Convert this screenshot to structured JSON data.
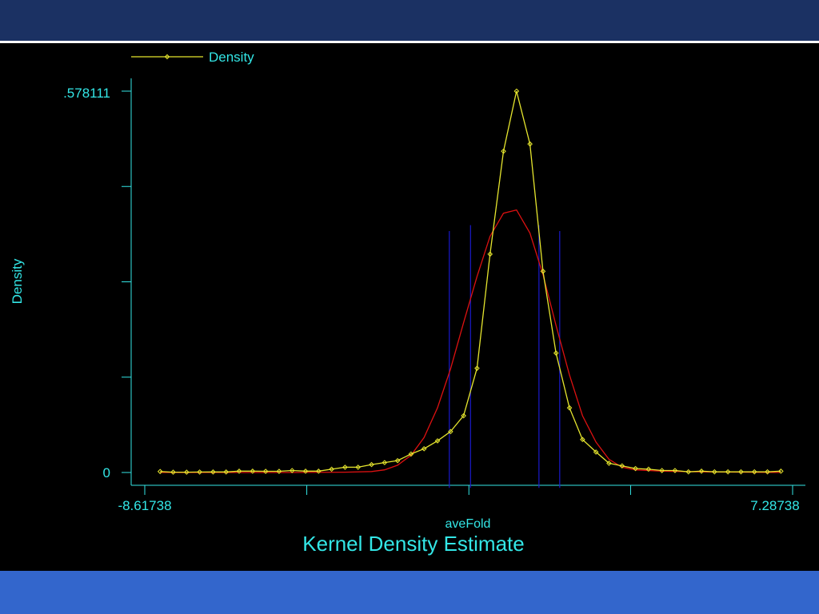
{
  "chart_data": {
    "type": "line",
    "title": "Kernel Density Estimate",
    "xlabel": "aveFold",
    "ylabel": "Density",
    "xlim": [
      -8.61738,
      7.28738
    ],
    "ylim": [
      0,
      0.578111
    ],
    "x_tick_labels": [
      "-8.61738",
      "7.28738"
    ],
    "y_tick_labels": [
      ".578111",
      "0"
    ],
    "legend": {
      "entries": [
        "Density"
      ],
      "placement": "top-left"
    },
    "colors": {
      "kde": "#e6e62e",
      "normal": "#dd1111",
      "ref_lines": "#1a1acc",
      "axis": "#33e6e6"
    },
    "series": [
      {
        "name": "Density",
        "x": [
          -8.24,
          -7.92,
          -7.59,
          -7.27,
          -6.94,
          -6.62,
          -6.3,
          -5.97,
          -5.65,
          -5.32,
          -5.0,
          -4.67,
          -4.35,
          -4.03,
          -3.7,
          -3.38,
          -3.05,
          -2.73,
          -2.41,
          -2.08,
          -1.76,
          -1.43,
          -1.11,
          -0.79,
          -0.46,
          -0.14,
          0.19,
          0.51,
          0.84,
          1.16,
          1.48,
          1.81,
          2.13,
          2.46,
          2.78,
          3.1,
          3.43,
          3.75,
          4.08,
          4.4,
          4.73,
          5.05,
          5.37,
          5.7,
          6.02,
          6.35,
          6.67,
          7.0
        ],
        "y": [
          0.0015,
          0.0005,
          0.0005,
          0.0007,
          0.0008,
          0.0008,
          0.002,
          0.002,
          0.0018,
          0.0018,
          0.003,
          0.002,
          0.002,
          0.005,
          0.008,
          0.008,
          0.012,
          0.015,
          0.018,
          0.028,
          0.036,
          0.048,
          0.062,
          0.086,
          0.158,
          0.331,
          0.487,
          0.5781,
          0.498,
          0.305,
          0.181,
          0.098,
          0.05,
          0.031,
          0.014,
          0.01,
          0.006,
          0.005,
          0.003,
          0.003,
          0.001,
          0.002,
          0.001,
          0.001,
          0.001,
          0.001,
          0.001,
          0.002
        ]
      },
      {
        "x": [
          -8.24,
          -5.0,
          -3.7,
          -3.05,
          -2.73,
          -2.41,
          -2.08,
          -1.76,
          -1.43,
          -1.11,
          -0.79,
          -0.46,
          -0.14,
          0.19,
          0.51,
          0.84,
          1.16,
          1.48,
          1.81,
          2.13,
          2.46,
          2.78,
          3.1,
          3.43,
          4.08,
          5.05,
          6.02,
          7.0
        ],
        "y": [
          0.0,
          0.0,
          0.0005,
          0.0015,
          0.004,
          0.011,
          0.026,
          0.053,
          0.098,
          0.157,
          0.227,
          0.297,
          0.358,
          0.393,
          0.398,
          0.363,
          0.3,
          0.223,
          0.148,
          0.086,
          0.046,
          0.02,
          0.008,
          0.004,
          0.002,
          0.001,
          0.0005,
          0.0
        ]
      }
    ],
    "ref_lines": [
      {
        "x": -1.14,
        "top": 0.366
      },
      {
        "x": -0.62,
        "top": 0.375
      },
      {
        "x": 1.06,
        "top": 0.375
      },
      {
        "x": 1.57,
        "top": 0.366
      }
    ],
    "x_minor_ticks": [
      -4.64,
      -0.66,
      3.31
    ]
  }
}
